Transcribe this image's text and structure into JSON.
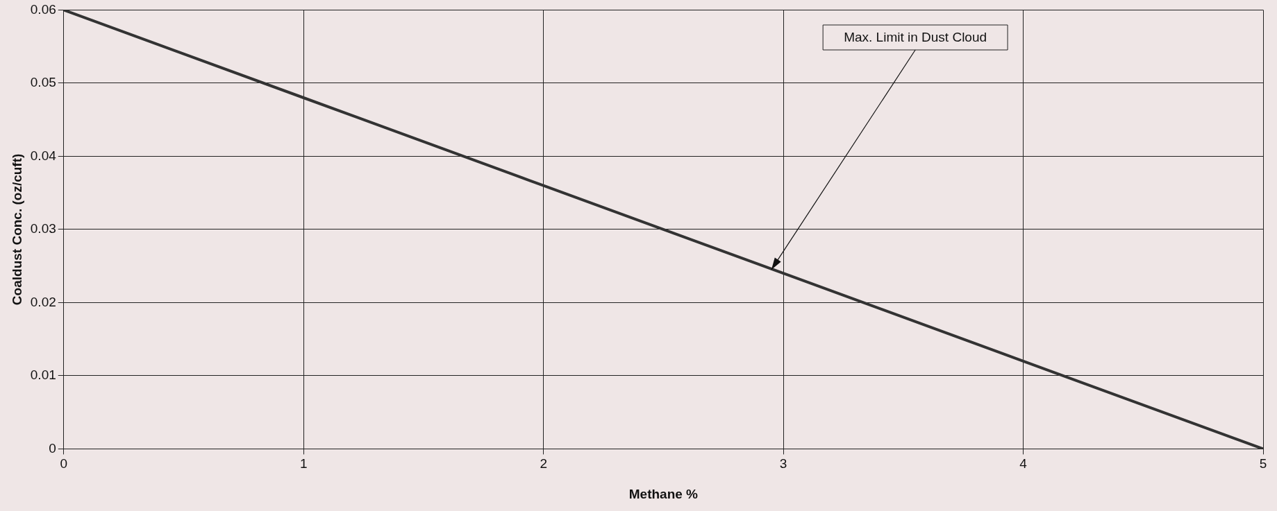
{
  "chart_data": {
    "type": "line",
    "xlabel": "Methane %",
    "ylabel": "Coaldust Conc. (oz/cuft)",
    "x": [
      0,
      1,
      2,
      3,
      4,
      5
    ],
    "series": [
      {
        "color": "#333333",
        "values": [
          0.06,
          0.048,
          0.036,
          0.024,
          0.012,
          0
        ]
      }
    ],
    "xlim": [
      0,
      5
    ],
    "xticks": [
      0,
      1,
      2,
      3,
      4,
      5
    ],
    "ylim": [
      0,
      0.06
    ],
    "yticks": [
      0,
      0.01,
      0.02,
      0.03,
      0.04,
      0.05,
      0.06
    ],
    "grid": true,
    "legend": false,
    "marker": "none",
    "line_style": "solid",
    "annotations": [
      {
        "text": "Max. Limit in Dust Cloud",
        "x": 2.95,
        "y": 0.0245
      }
    ]
  }
}
